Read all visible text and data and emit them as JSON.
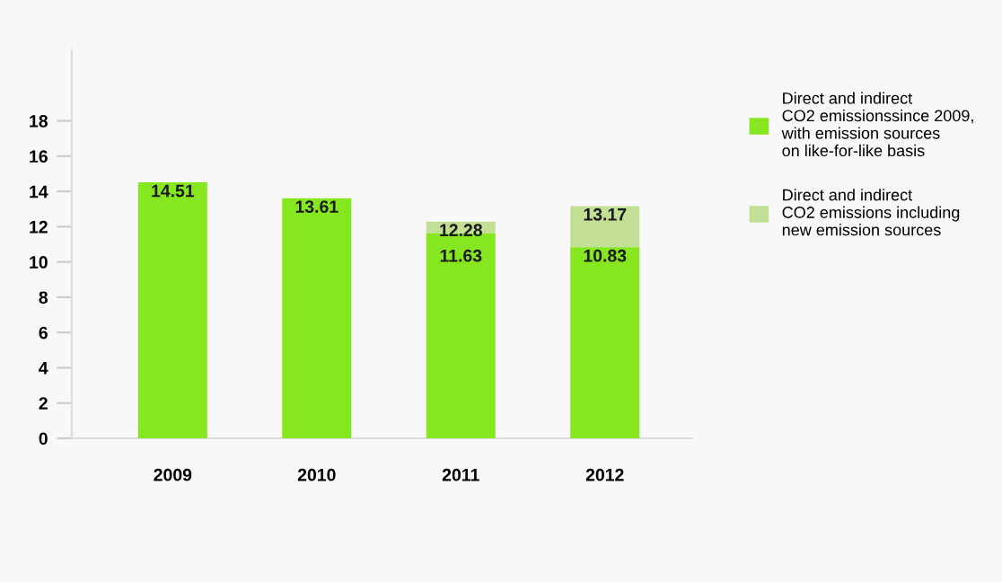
{
  "chart_data": {
    "type": "bar",
    "stacked": true,
    "totals": [
      null,
      null,
      "12.28",
      "13.17"
    ],
    "categories": [
      "2009",
      "2010",
      "2011",
      "2012"
    ],
    "series": [
      {
        "name": "Direct and indirect\nCO2 emissionssince 2009,\nwith emission sources\non like-for-like basis",
        "color": "#86e620",
        "values": [
          14.51,
          13.61,
          11.63,
          10.83
        ],
        "value_labels": [
          "14.51",
          "13.61",
          "11.63",
          "10.83"
        ]
      },
      {
        "name": "Direct and indirect\nCO2 emissions including\nnew emission sources",
        "color": "#c3df96",
        "values": [
          null,
          null,
          0.65,
          2.34
        ]
      }
    ],
    "ylim": [
      0,
      22
    ],
    "yticks": [
      0,
      2,
      4,
      6,
      8,
      10,
      12,
      14,
      16,
      18
    ],
    "grid": false,
    "legend": "top right"
  }
}
